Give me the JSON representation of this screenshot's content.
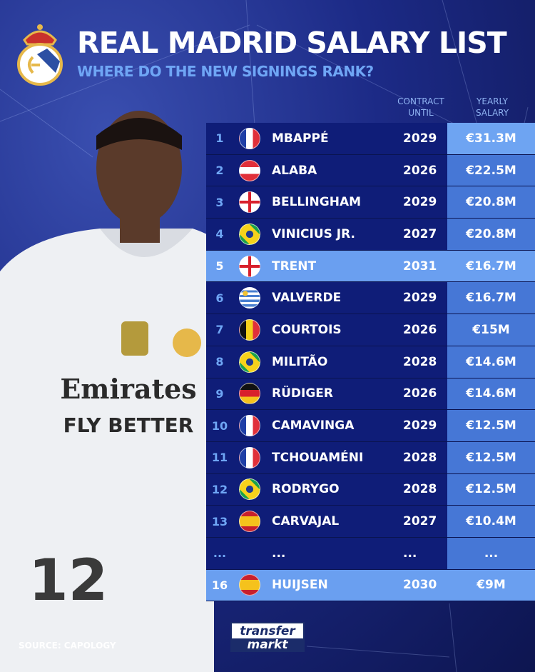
{
  "header": {
    "title": "REAL MADRID SALARY LIST",
    "subtitle": "WHERE DO THE NEW SIGNINGS RANK?"
  },
  "columns": {
    "contract_line1": "CONTRACT",
    "contract_line2": "UNTIL",
    "salary_line1": "YEARLY",
    "salary_line2": "SALARY"
  },
  "rows": [
    {
      "rank": "1",
      "flag": "france",
      "name": "MBAPPÉ",
      "contract": "2029",
      "salary": "€31.3M",
      "highlight": false
    },
    {
      "rank": "2",
      "flag": "austria",
      "name": "ALABA",
      "contract": "2026",
      "salary": "€22.5M",
      "highlight": false
    },
    {
      "rank": "3",
      "flag": "england",
      "name": "BELLINGHAM",
      "contract": "2029",
      "salary": "€20.8M",
      "highlight": false
    },
    {
      "rank": "4",
      "flag": "brazil",
      "name": "VINICIUS JR.",
      "contract": "2027",
      "salary": "€20.8M",
      "highlight": false
    },
    {
      "rank": "5",
      "flag": "england",
      "name": "TRENT",
      "contract": "2031",
      "salary": "€16.7M",
      "highlight": true
    },
    {
      "rank": "6",
      "flag": "uruguay",
      "name": "VALVERDE",
      "contract": "2029",
      "salary": "€16.7M",
      "highlight": false
    },
    {
      "rank": "7",
      "flag": "belgium",
      "name": "COURTOIS",
      "contract": "2026",
      "salary": "€15M",
      "highlight": false
    },
    {
      "rank": "8",
      "flag": "brazil",
      "name": "MILITÃO",
      "contract": "2028",
      "salary": "€14.6M",
      "highlight": false
    },
    {
      "rank": "9",
      "flag": "germany",
      "name": "RÜDIGER",
      "contract": "2026",
      "salary": "€14.6M",
      "highlight": false
    },
    {
      "rank": "10",
      "flag": "france",
      "name": "CAMAVINGA",
      "contract": "2029",
      "salary": "€12.5M",
      "highlight": false
    },
    {
      "rank": "11",
      "flag": "france",
      "name": "TCHOUAMÉNI",
      "contract": "2028",
      "salary": "€12.5M",
      "highlight": false
    },
    {
      "rank": "12",
      "flag": "brazil",
      "name": "RODRYGO",
      "contract": "2028",
      "salary": "€12.5M",
      "highlight": false
    },
    {
      "rank": "13",
      "flag": "spain",
      "name": "CARVAJAL",
      "contract": "2027",
      "salary": "€10.4M",
      "highlight": false
    },
    {
      "rank": "...",
      "flag": "none",
      "name": "...",
      "contract": "...",
      "salary": "...",
      "highlight": false
    },
    {
      "rank": "16",
      "flag": "spain",
      "name": "HUIJSEN",
      "contract": "2030",
      "salary": "€9M",
      "highlight": true
    }
  ],
  "footer": {
    "source": "SOURCE: CAPOLOGY",
    "logo_line1": "transfer",
    "logo_line2": "markt"
  },
  "jersey": {
    "sponsor": "Emirates",
    "tagline": "FLY BETTER",
    "number": "12"
  },
  "colors": {
    "background": "#1c2a86",
    "row": "#0f1d78",
    "salary_cell": "#4677d6",
    "highlight": "#6a9ff0",
    "subtitle": "#6fa6f5"
  }
}
